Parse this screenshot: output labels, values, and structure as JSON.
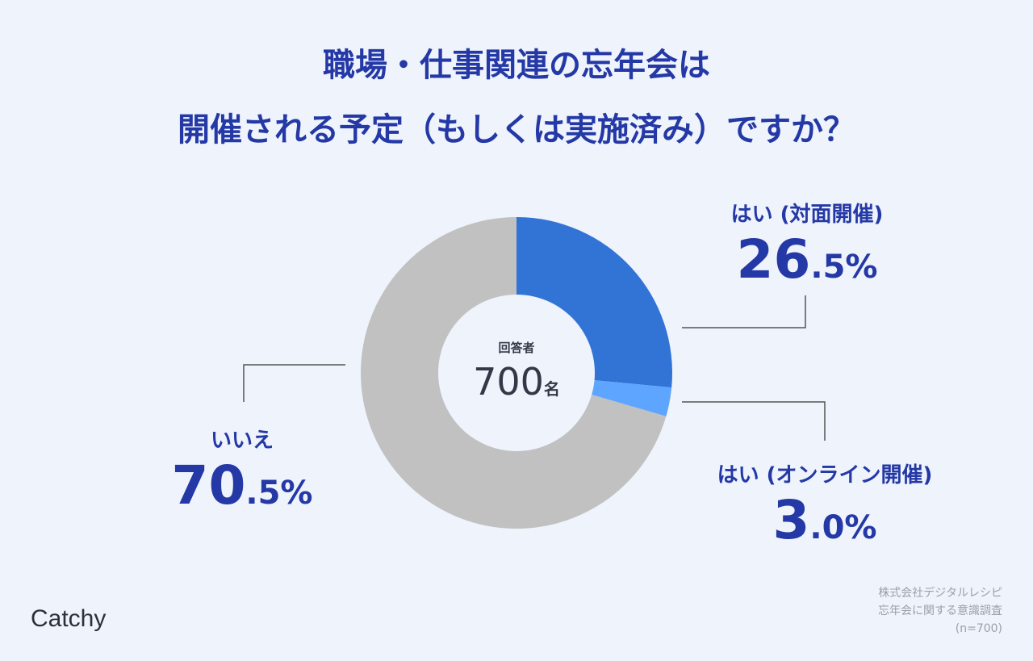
{
  "title_lines": [
    "職場・仕事関連の忘年会は",
    "開催される予定（もしくは実施済み）ですか？"
  ],
  "chart_data": {
    "type": "pie",
    "donut": true,
    "categories": [
      "はい (対面開催)",
      "はい (オンライン開催)",
      "いいえ"
    ],
    "values": [
      26.5,
      3.0,
      70.5
    ],
    "value_labels": [
      {
        "int": "26",
        "dec": ".5%"
      },
      {
        "int": "3",
        "dec": ".0%"
      },
      {
        "int": "70",
        "dec": ".5%"
      }
    ],
    "colors": [
      "#3273d6",
      "#5ea5ff",
      "#c1c1c1"
    ],
    "center_label": "回答者",
    "center_value": "700",
    "center_unit": "名"
  },
  "source": [
    "株式会社デジタルレシピ",
    "忘年会に関する意識調査",
    "(n=700)"
  ],
  "logo": "Catchy"
}
